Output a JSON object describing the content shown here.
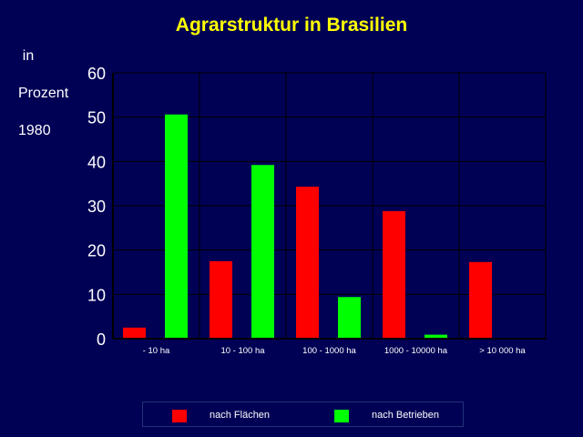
{
  "chart_data": {
    "type": "bar",
    "title": "Agrarstruktur in Brasilien",
    "ylabel": "in\n\nProzent\n\n1980",
    "xlabel": "",
    "categories": [
      "- 10 ha",
      "10 - 100 ha",
      "100 - 1000 ha",
      "1000 - 10000 ha",
      "> 10 000 ha"
    ],
    "yticks": [
      "0",
      "10",
      "20",
      "30",
      "40",
      "50",
      "60"
    ],
    "ylim": [
      0,
      60
    ],
    "grid": true,
    "legend_position": "bottom",
    "series": [
      {
        "name": "nach Flächen",
        "color": "#ff0000",
        "values": [
          2.5,
          17.5,
          34.3,
          28.8,
          17.3
        ]
      },
      {
        "name": "nach Betrieben",
        "color": "#00ff00",
        "values": [
          50.6,
          39.2,
          9.4,
          0.9,
          0
        ]
      }
    ]
  },
  "colors": {
    "background": "#000055",
    "title": "#ffff00",
    "grid": "#000000",
    "text": "#ffffff"
  }
}
